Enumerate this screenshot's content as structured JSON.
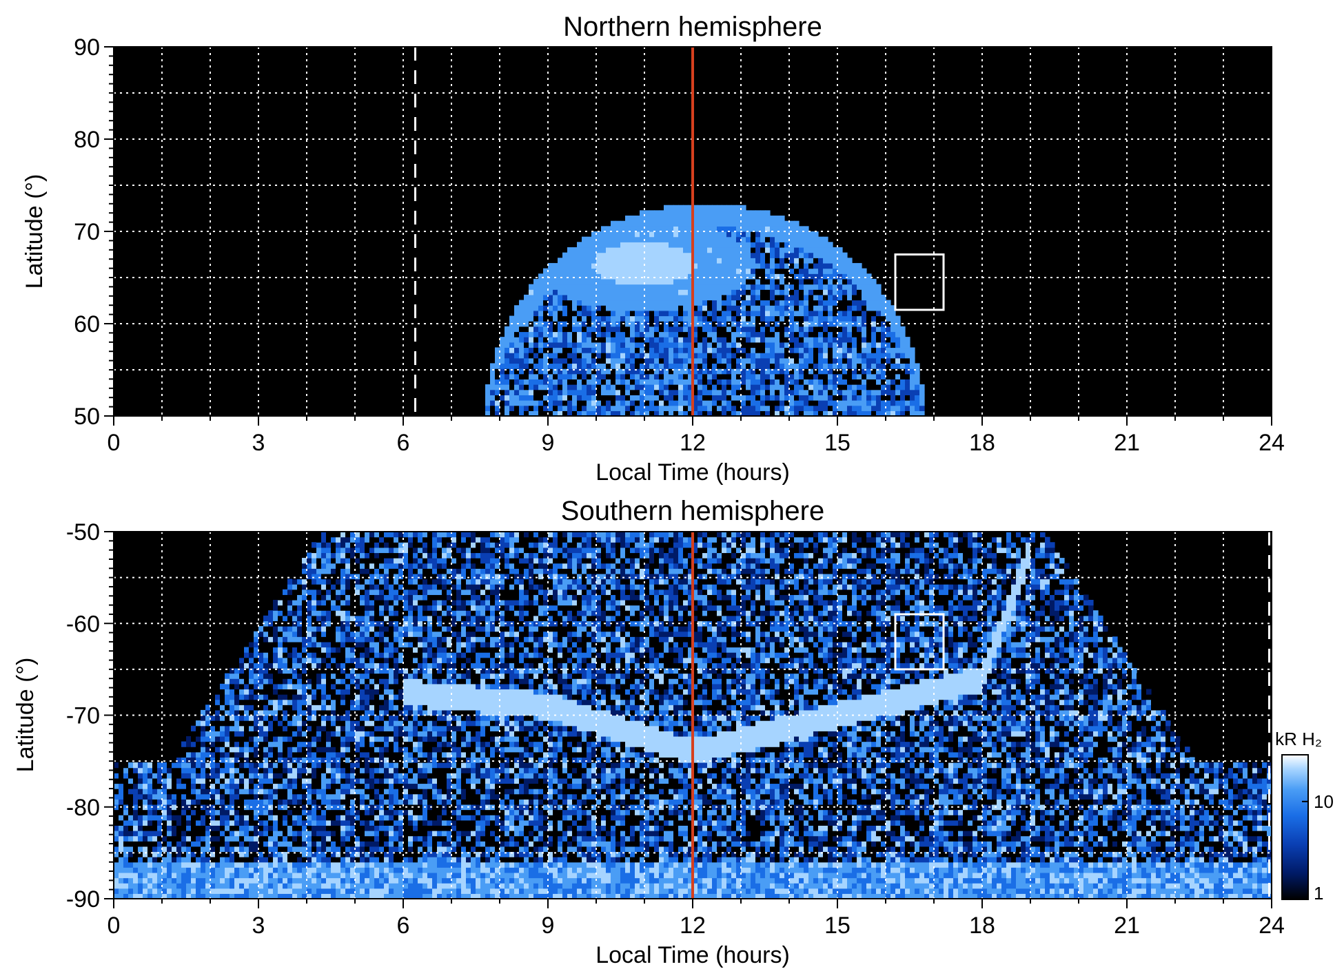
{
  "chart_data": [
    {
      "type": "heatmap",
      "title": "Northern hemisphere",
      "xlabel": "Local Time (hours)",
      "ylabel": "Latitude (°)",
      "xlim": [
        0,
        24
      ],
      "ylim": [
        50,
        90
      ],
      "x_ticks": [
        "0",
        "3",
        "6",
        "9",
        "12",
        "15",
        "18",
        "21",
        "24"
      ],
      "y_ticks": [
        "90",
        "80",
        "70",
        "60",
        "50"
      ],
      "y_tick_values": [
        90,
        80,
        70,
        60,
        50
      ],
      "grid": true,
      "grid_x_step": 1,
      "grid_y_step": 5,
      "noon_line_x": 12,
      "noon_line_color": "#d6401e",
      "terminator_x": 6.25,
      "box": {
        "x0": 16.2,
        "x1": 17.2,
        "y0": 61.5,
        "y1": 67.5
      },
      "auroral_region": {
        "lt_min": 7.7,
        "lt_max": 16.8,
        "lat_edge_at_noon": 73,
        "lat_min": 50
      },
      "bright_spot": {
        "lt": 11.0,
        "lat": 66.5
      }
    },
    {
      "type": "heatmap",
      "title": "Southern hemisphere",
      "xlabel": "Local Time (hours)",
      "ylabel": "Latitude (°)",
      "xlim": [
        0,
        24
      ],
      "ylim": [
        -90,
        -50
      ],
      "x_ticks": [
        "0",
        "3",
        "6",
        "9",
        "12",
        "15",
        "18",
        "21",
        "24"
      ],
      "y_ticks": [
        "-50",
        "-60",
        "-70",
        "-80",
        "-90"
      ],
      "y_tick_values": [
        -50,
        -60,
        -70,
        -80,
        -90
      ],
      "grid": true,
      "grid_x_step": 1,
      "grid_y_step": 5,
      "noon_line_x": 12,
      "noon_line_color": "#d6401e",
      "terminator_x": 23.95,
      "box": {
        "x0": 16.2,
        "x1": 17.2,
        "y0": -65,
        "y1": -59
      },
      "auroral_oval": [
        {
          "lt": 6.0,
          "lat": -67.5
        },
        {
          "lt": 9.0,
          "lat": -69.0
        },
        {
          "lt": 12.0,
          "lat": -74.0
        },
        {
          "lt": 15.0,
          "lat": -70.0
        },
        {
          "lt": 18.0,
          "lat": -66.0
        },
        {
          "lt": 19.0,
          "lat": -52.0
        }
      ]
    }
  ],
  "colorbar": {
    "label": "kR H₂",
    "ticks": [
      "1",
      "10"
    ],
    "tick_values": [
      1,
      10
    ],
    "range": [
      1,
      30
    ],
    "scale": "log",
    "colors": [
      "#000000",
      "#001a66",
      "#0a3fb3",
      "#1a6ee6",
      "#4a9df5",
      "#a6d4ff",
      "#ffffff"
    ]
  }
}
